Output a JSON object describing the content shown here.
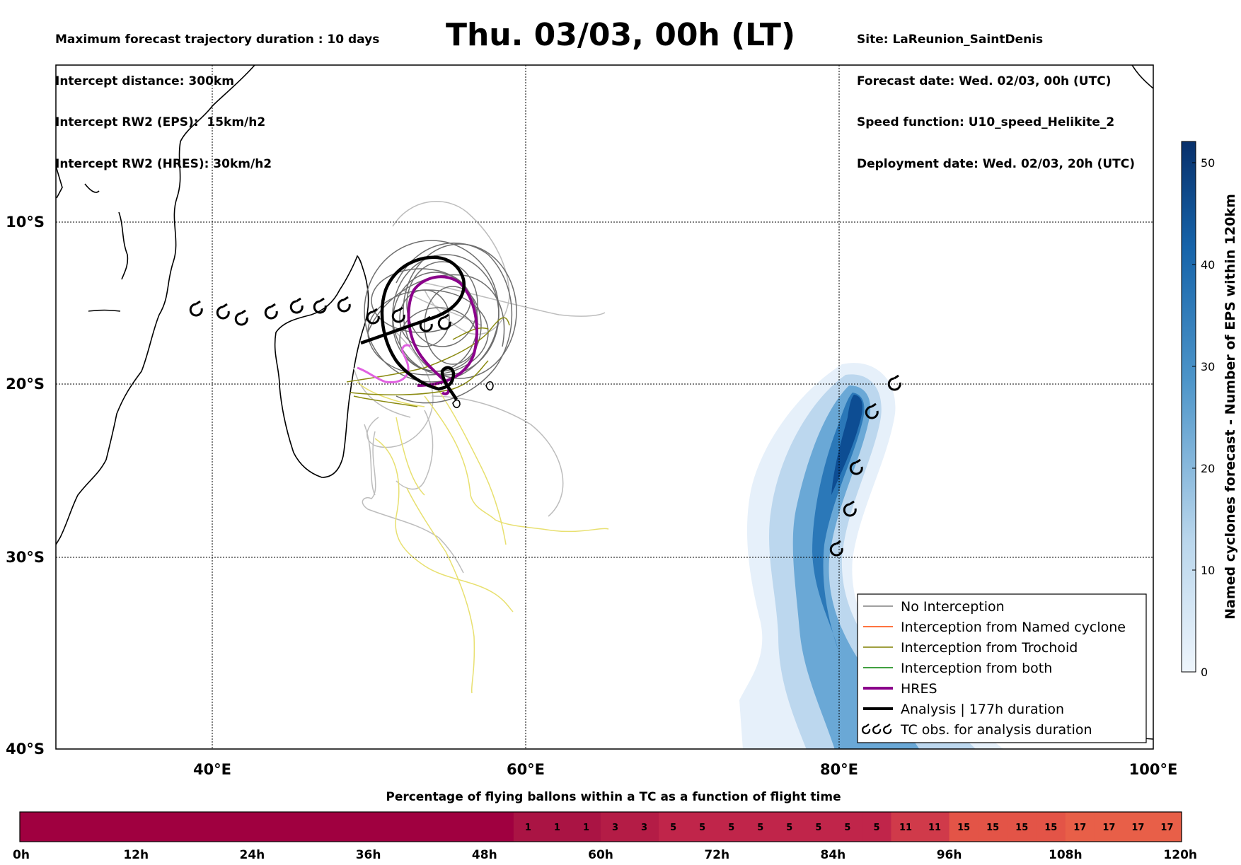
{
  "header": {
    "left": [
      "Maximum forecast trajectory duration : 10 days",
      "Intercept distance: 300km",
      "Intercept RW2 (EPS):  15km/h2",
      "Intercept RW2 (HRES): 30km/h2"
    ],
    "title": "Thu. 03/03, 00h (LT)",
    "right": [
      "Site: LaReunion_SaintDenis",
      "Forecast date: Wed. 02/03, 00h (UTC)",
      "Speed function: U10_speed_Helikite_2",
      "Deployment date: Wed. 02/03, 20h (UTC)"
    ]
  },
  "map": {
    "lon_ticks": [
      "40°E",
      "60°E",
      "80°E",
      "100°E"
    ],
    "lat_ticks": [
      "10°S",
      "20°S",
      "30°S",
      "40°S"
    ]
  },
  "legend": {
    "items": [
      {
        "label": "No Interception",
        "color": "#808080"
      },
      {
        "label": "Interception from Named cyclone",
        "color": "#ff4500"
      },
      {
        "label": "Interception from Trochoid",
        "color": "#808000"
      },
      {
        "label": "Interception from both",
        "color": "#008000"
      },
      {
        "label": "HRES",
        "color": "#8b008b"
      },
      {
        "label": "Analysis | 177h duration",
        "color": "#000000"
      },
      {
        "label": "TC obs. for analysis duration",
        "color": "#000000"
      }
    ]
  },
  "colorbar": {
    "label": "Named cyclones forecast - Number of EPS within 120km",
    "ticks": [
      "0",
      "10",
      "20",
      "30",
      "40",
      "50"
    ],
    "colors": [
      "#e8f1fb",
      "#08306b"
    ]
  },
  "timebar": {
    "title": "Percentage of flying ballons within a TC as a function of flight time",
    "cells": [
      "",
      "",
      "",
      "",
      "",
      "",
      "",
      "",
      "",
      "",
      "",
      "",
      "",
      "",
      "",
      "",
      "",
      "1",
      "1",
      "1",
      "3",
      "3",
      "5",
      "5",
      "5",
      "5",
      "5",
      "5",
      "5",
      "5",
      "11",
      "11",
      "15",
      "15",
      "15",
      "15",
      "17",
      "17",
      "17",
      "17"
    ],
    "tick_labels": [
      "0h",
      "12h",
      "24h",
      "36h",
      "48h",
      "60h",
      "72h",
      "84h",
      "96h",
      "108h",
      "120h"
    ]
  }
}
